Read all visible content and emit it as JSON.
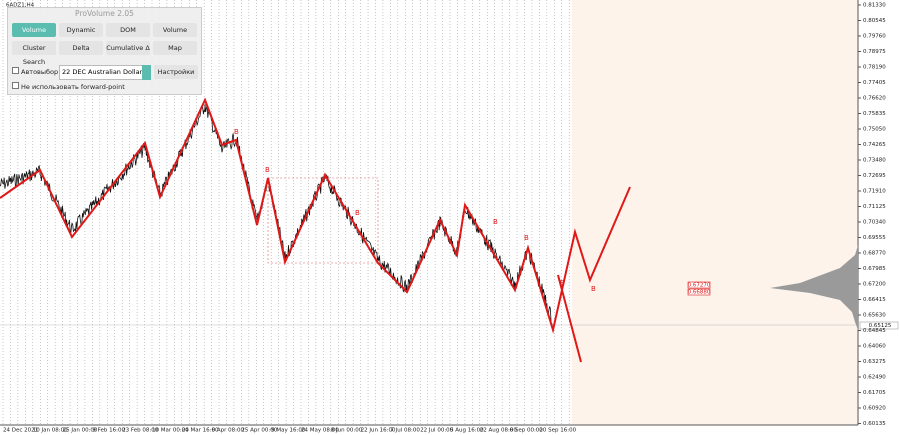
{
  "symbol": "6ADZ1,H4",
  "panel": {
    "title": "ProVolume 2.05",
    "buttons": [
      "Volume Profile",
      "Dynamic POC",
      "DOM",
      "Volume",
      "Cluster Search",
      "Delta",
      "Cumulative Δ",
      "Map"
    ],
    "auto_select": "Автовыбор",
    "instrument": "22 DEC Australian Dollar",
    "settings": "Настройки",
    "forward_point": "Не использовать forward-point"
  },
  "price_axis": [
    "0.81330",
    "0.80545",
    "0.79760",
    "0.78975",
    "0.78190",
    "0.77405",
    "0.76620",
    "0.75835",
    "0.75050",
    "0.74265",
    "0.73480",
    "0.72695",
    "0.71910",
    "0.71125",
    "0.70340",
    "0.69555",
    "0.68770",
    "0.67985",
    "0.67200",
    "0.66415",
    "0.65630",
    "0.64845",
    "0.64060",
    "0.63275",
    "0.62490",
    "0.61705",
    "0.60920",
    "0.60135"
  ],
  "current_price": "0.65125",
  "level_labels": [
    "0.67270",
    "0.66880"
  ],
  "time_axis": [
    "24 Dec 2021",
    "10 Jan 08:00",
    "25 Jan 00:00",
    "9 Feb 16:00",
    "23 Feb 08:00",
    "10 Mar 00:00",
    "24 Mar 16:00",
    "8 Apr 08:00",
    "25 Apr 00:00",
    "9 May 16:00",
    "24 May 08:00",
    "8 Jun 00:00",
    "22 Jun 16:00",
    "7 Jul 08:00",
    "22 Jul 00:00",
    "5 Aug 16:00",
    "22 Aug 08:00",
    "6 Sep 00:00",
    "20 Sep 16:00"
  ],
  "wave_marks": [
    "B",
    "B",
    "B",
    "B",
    "B",
    "B",
    "B"
  ]
}
